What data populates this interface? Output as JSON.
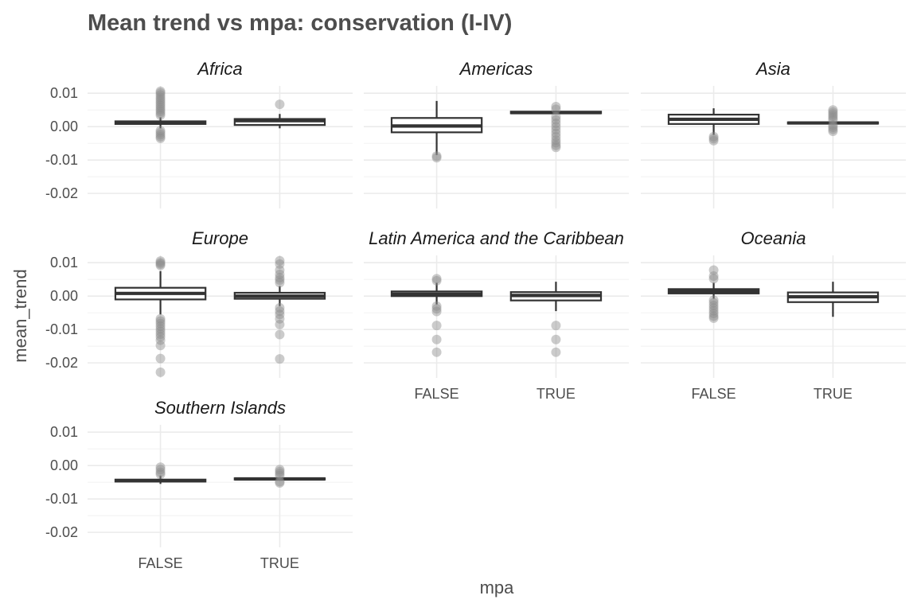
{
  "chart_data": {
    "type": "boxplot",
    "title": "Mean trend vs mpa: conservation (I-IV)",
    "xlabel": "mpa",
    "ylabel": "mean_trend",
    "categories": [
      "FALSE",
      "TRUE"
    ],
    "y_ticks": [
      0.01,
      0.0,
      -0.01,
      -0.02
    ],
    "y_tick_labels": [
      "0.01",
      "0.00",
      "-0.01",
      "-0.02"
    ],
    "ylim": [
      -0.0245,
      0.0122
    ],
    "facet_columns": 3,
    "panels": [
      {
        "region": "Africa",
        "boxes": [
          {
            "mpa": "FALSE",
            "whisker_low": -0.0005,
            "q1": 0.0008,
            "median": 0.0012,
            "q3": 0.0016,
            "whisker_high": 0.0028,
            "outliers": [
              0.0106,
              0.0101,
              0.0095,
              0.0088,
              0.0082,
              0.0076,
              0.007,
              0.0064,
              0.0058,
              0.0052,
              0.0046,
              0.004,
              0.0034,
              -0.0012,
              -0.0018,
              -0.0024,
              -0.003,
              -0.0035
            ]
          },
          {
            "mpa": "TRUE",
            "whisker_low": -0.0005,
            "q1": 0.0005,
            "median": 0.0018,
            "q3": 0.0023,
            "whisker_high": 0.0038,
            "outliers": [
              0.0067
            ]
          }
        ]
      },
      {
        "region": "Americas",
        "boxes": [
          {
            "mpa": "FALSE",
            "whisker_low": -0.0085,
            "q1": -0.0017,
            "median": 0.0002,
            "q3": 0.0026,
            "whisker_high": 0.0077,
            "outliers": [
              -0.0088,
              -0.0093
            ]
          },
          {
            "mpa": "TRUE",
            "whisker_low": 0.0038,
            "q1": 0.004,
            "median": 0.0042,
            "q3": 0.0045,
            "whisker_high": 0.0048,
            "outliers": [
              0.006,
              0.0052,
              0.003,
              0.002,
              0.001,
              0.0,
              -0.001,
              -0.002,
              -0.003,
              -0.004,
              -0.0048,
              -0.0056,
              -0.0062
            ]
          }
        ]
      },
      {
        "region": "Asia",
        "boxes": [
          {
            "mpa": "FALSE",
            "whisker_low": -0.0025,
            "q1": 0.0008,
            "median": 0.0022,
            "q3": 0.0036,
            "whisker_high": 0.0055,
            "outliers": [
              -0.003,
              -0.0036,
              -0.0042
            ]
          },
          {
            "mpa": "TRUE",
            "whisker_low": 0.0008,
            "q1": 0.0009,
            "median": 0.0011,
            "q3": 0.0013,
            "whisker_high": 0.0015,
            "outliers": [
              0.005,
              0.0044,
              0.0038,
              0.0032,
              0.0026,
              0.002,
              0.0004,
              -0.0002,
              -0.0008,
              -0.0014
            ]
          }
        ]
      },
      {
        "region": "Europe",
        "boxes": [
          {
            "mpa": "FALSE",
            "whisker_low": -0.0055,
            "q1": -0.001,
            "median": 0.0008,
            "q3": 0.0025,
            "whisker_high": 0.0075,
            "outliers": [
              0.0105,
              0.01,
              0.0096,
              0.0092,
              -0.0068,
              -0.0075,
              -0.0082,
              -0.009,
              -0.0098,
              -0.0106,
              -0.0114,
              -0.0122,
              -0.0132,
              -0.0148,
              -0.0187,
              -0.0228
            ]
          },
          {
            "mpa": "TRUE",
            "whisker_low": -0.003,
            "q1": -0.0008,
            "median": 0.0,
            "q3": 0.001,
            "whisker_high": 0.003,
            "outliers": [
              0.0106,
              0.0096,
              0.0078,
              0.0065,
              0.0055,
              0.0048,
              0.004,
              -0.0035,
              -0.0045,
              -0.0055,
              -0.0068,
              -0.0085,
              -0.0115,
              -0.0188
            ]
          }
        ]
      },
      {
        "region": "Latin America and the Caribbean",
        "boxes": [
          {
            "mpa": "FALSE",
            "whisker_low": -0.0025,
            "q1": 0.0,
            "median": 0.0006,
            "q3": 0.0014,
            "whisker_high": 0.004,
            "outliers": [
              0.0052,
              0.0046,
              -0.003,
              -0.0038,
              -0.0046,
              -0.0088,
              -0.013,
              -0.0168
            ]
          },
          {
            "mpa": "TRUE",
            "whisker_low": -0.0045,
            "q1": -0.0013,
            "median": 0.0002,
            "q3": 0.0012,
            "whisker_high": 0.0043,
            "outliers": [
              -0.0088,
              -0.013,
              -0.0168
            ]
          }
        ]
      },
      {
        "region": "Oceania",
        "boxes": [
          {
            "mpa": "FALSE",
            "whisker_low": -0.0008,
            "q1": 0.0008,
            "median": 0.0015,
            "q3": 0.0021,
            "whisker_high": 0.004,
            "outliers": [
              0.0078,
              0.006,
              0.0052,
              -0.0012,
              -0.002,
              -0.0028,
              -0.0036,
              -0.0044,
              -0.0052,
              -0.006,
              -0.0066
            ]
          },
          {
            "mpa": "TRUE",
            "whisker_low": -0.0062,
            "q1": -0.0018,
            "median": -0.0002,
            "q3": 0.0011,
            "whisker_high": 0.0043,
            "outliers": []
          }
        ]
      },
      {
        "region": "Southern Islands",
        "boxes": [
          {
            "mpa": "FALSE",
            "whisker_low": -0.0055,
            "q1": -0.0048,
            "median": -0.0045,
            "q3": -0.0042,
            "whisker_high": -0.003,
            "outliers": [
              -0.0005,
              -0.0012,
              -0.002,
              -0.0026
            ]
          },
          {
            "mpa": "TRUE",
            "whisker_low": -0.0045,
            "q1": -0.0042,
            "median": -0.004,
            "q3": -0.0038,
            "whisker_high": -0.0035,
            "outliers": [
              -0.0012,
              -0.0018,
              -0.0024,
              -0.003,
              -0.0048,
              -0.0052
            ]
          }
        ]
      }
    ]
  }
}
